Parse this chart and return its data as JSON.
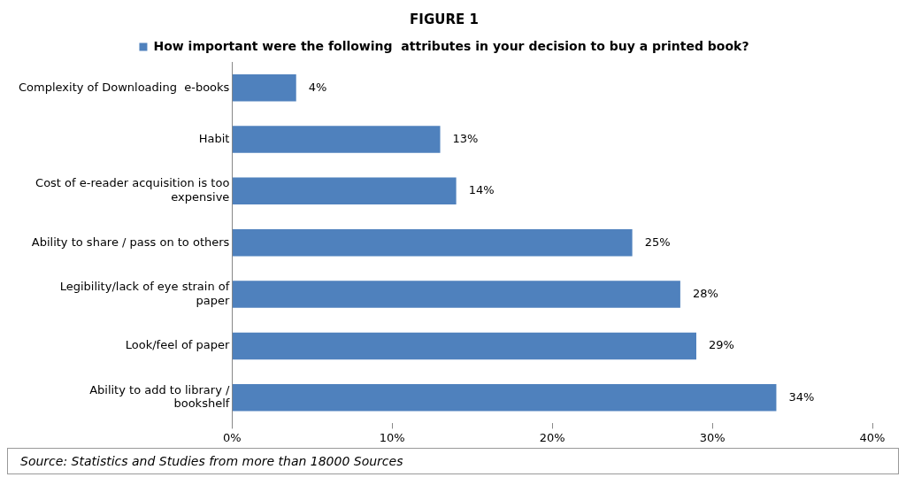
{
  "chart_data": {
    "type": "bar",
    "orientation": "horizontal",
    "title": "FIGURE 1",
    "categories": [
      "Complexity of Downloading  e-books",
      "Habit",
      "Cost of e-reader acquisition is too expensive",
      "Ability to share / pass on to others",
      "Legibility/lack of eye strain of paper",
      "Look/feel of paper",
      "Ability to add to library / bookshelf"
    ],
    "series": [
      {
        "name": "How important were the following  attributes in your decision to buy a printed book?",
        "color": "#4f81bd",
        "values": [
          4,
          13,
          14,
          25,
          28,
          29,
          34
        ],
        "value_labels": [
          "4%",
          "13%",
          "14%",
          "25%",
          "28%",
          "29%",
          "34%"
        ]
      }
    ],
    "xlim": [
      0,
      40
    ],
    "xticks": [
      {
        "value": 0,
        "label": "0%"
      },
      {
        "value": 10,
        "label": "10%"
      },
      {
        "value": 20,
        "label": "20%"
      },
      {
        "value": 30,
        "label": "30%"
      },
      {
        "value": 40,
        "label": "40%"
      }
    ],
    "grid": false,
    "legend": "top",
    "annotations": [
      "Source: Statistics and Studies from more than 18000 Sources"
    ]
  }
}
